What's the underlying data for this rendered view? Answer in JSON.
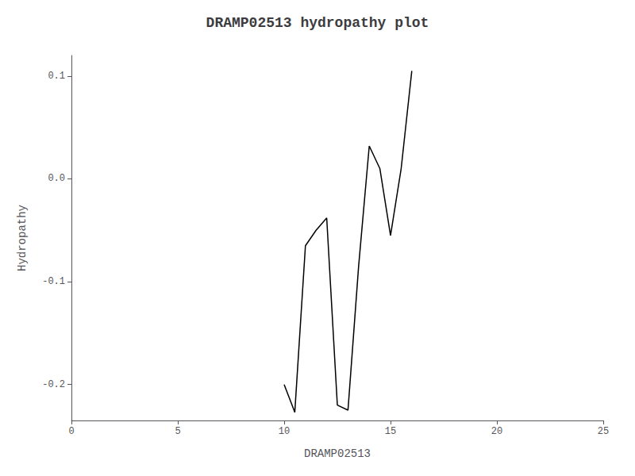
{
  "chart_data": {
    "type": "line",
    "title": "DRAMP02513 hydropathy plot",
    "xlabel": "DRAMP02513",
    "ylabel": "Hydropathy",
    "x": [
      10.0,
      10.5,
      11.0,
      11.5,
      12.0,
      12.5,
      13.0,
      13.5,
      14.0,
      14.5,
      15.0,
      15.5,
      16.0
    ],
    "values": [
      -0.2,
      -0.227,
      -0.065,
      -0.05,
      -0.038,
      -0.22,
      -0.225,
      -0.085,
      0.032,
      0.01,
      -0.055,
      0.01,
      0.105
    ],
    "color": "#000000",
    "xlim": [
      0,
      25
    ],
    "xticks": [
      0,
      5,
      10,
      15,
      20,
      25
    ],
    "ylim": [
      -0.235,
      0.12
    ],
    "yticks": [
      -0.2,
      -0.1,
      {
        "value": 0.0,
        "label": "0.0"
      },
      0.1
    ],
    "grid": false
  }
}
